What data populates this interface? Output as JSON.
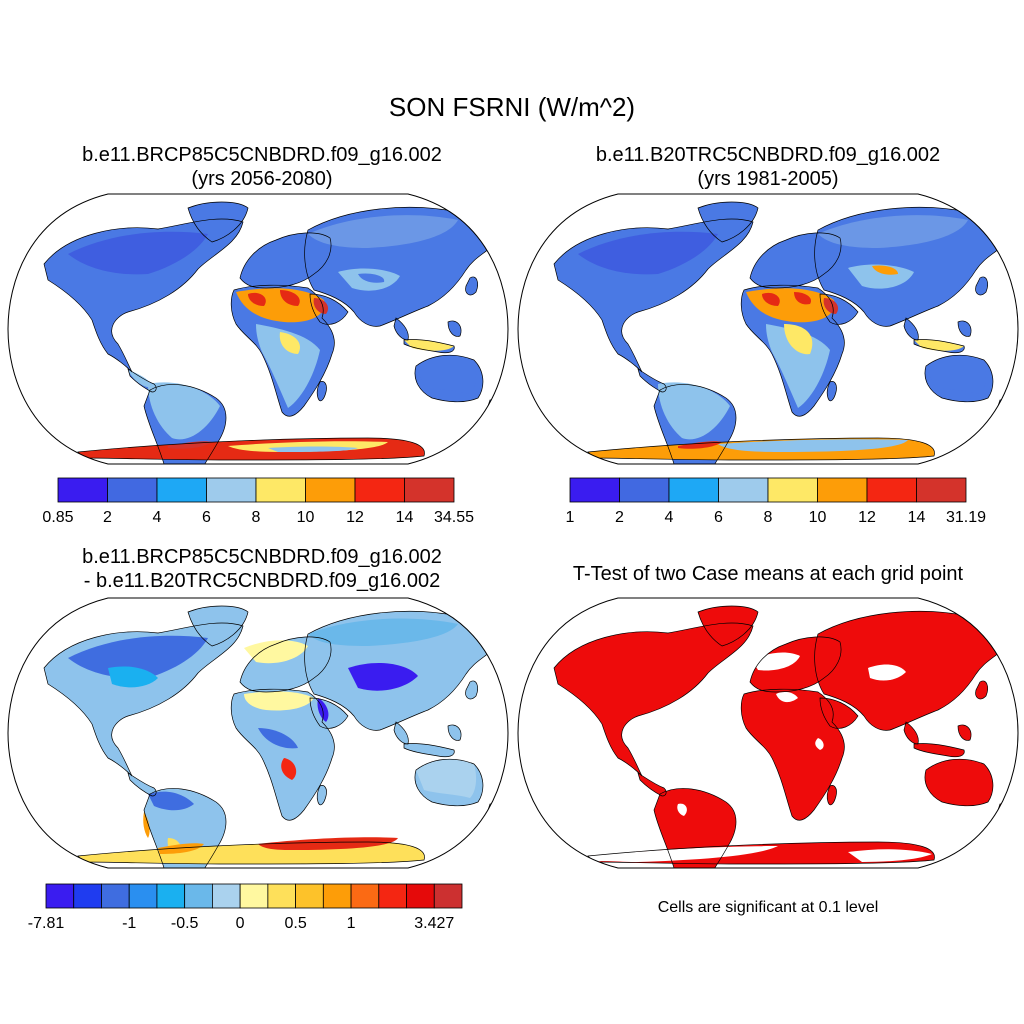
{
  "title": "SON FSRNI (W/m^2)",
  "panels": [
    {
      "title_line1": "b.e11.BRCP85C5CNBDRD.f09_g16.002",
      "title_line2": "(yrs 2056-2080)",
      "colorbar": {
        "colors": [
          "#3a1cf0",
          "#4169e1",
          "#1ea8f5",
          "#9ecbec",
          "#fee866",
          "#fd9d08",
          "#f42612",
          "#d4332b"
        ],
        "labels": [
          "0.85",
          "2",
          "4",
          "6",
          "8",
          "10",
          "12",
          "14",
          "34.55"
        ]
      }
    },
    {
      "title_line1": "b.e11.B20TRC5CNBDRD.f09_g16.002",
      "title_line2": "(yrs 1981-2005)",
      "colorbar": {
        "colors": [
          "#3a1cf0",
          "#4169e1",
          "#1ea8f5",
          "#9ecbec",
          "#fee866",
          "#fd9d08",
          "#f42612",
          "#d4332b"
        ],
        "labels": [
          "1",
          "2",
          "4",
          "6",
          "8",
          "10",
          "12",
          "14",
          "31.19"
        ]
      }
    },
    {
      "title_line1": "b.e11.BRCP85C5CNBDRD.f09_g16.002",
      "title_line2": "- b.e11.B20TRC5CNBDRD.f09_g16.002",
      "colorbar": {
        "colors": [
          "#3a1cf0",
          "#1f3cf0",
          "#3f6de0",
          "#2a8ff0",
          "#1ab0f0",
          "#6ab8ea",
          "#aad2ee",
          "#fff8a0",
          "#fee05a",
          "#fdc22a",
          "#fd9d08",
          "#fb6a14",
          "#f42612",
          "#e50a0a",
          "#cc3030"
        ],
        "labels": [
          "-7.81",
          "",
          "",
          "-1",
          "",
          "-0.5",
          "",
          "0",
          "",
          "0.5",
          "",
          "1",
          "",
          "",
          "3.427"
        ]
      }
    },
    {
      "title_line1": "T-Test of two Case means at each grid point",
      "note": "Cells are significant at 0.1 level"
    }
  ]
}
